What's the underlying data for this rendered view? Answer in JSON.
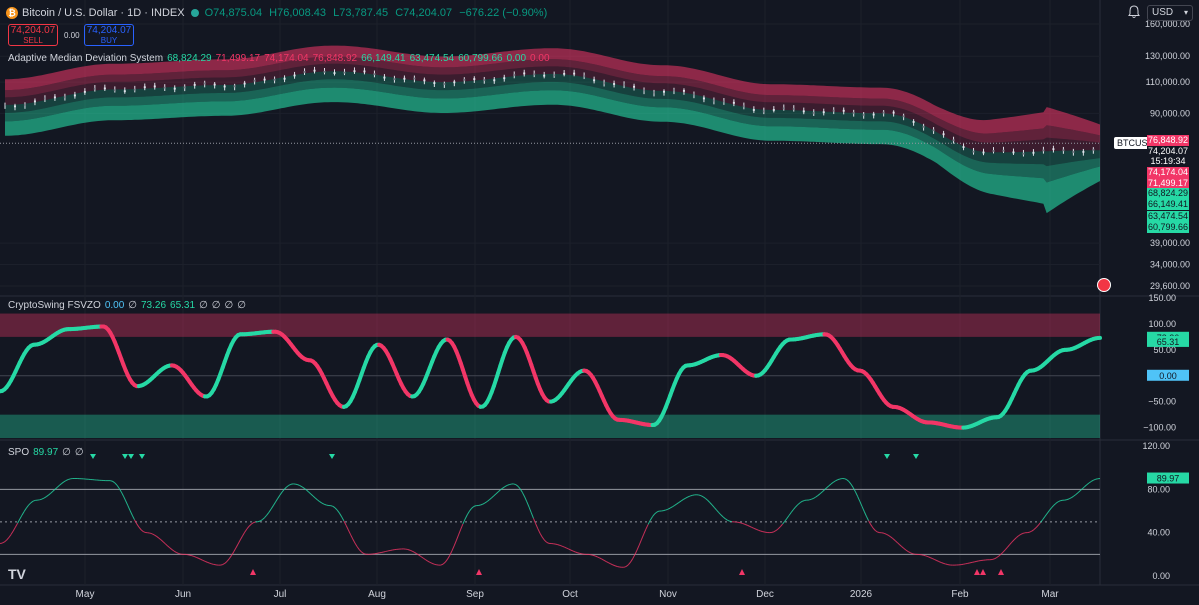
{
  "header": {
    "symbol_icon": "bitcoin-icon",
    "title": "Bitcoin / U.S. Dollar · 1D · INDEX",
    "ohlc": [
      "O74,875.04",
      "H76,008.43",
      "L73,787.45",
      "C74,204.07",
      "−676.22 (−0.90%)"
    ],
    "currency": "USD"
  },
  "trade": {
    "sell_price": "74,204.07",
    "sell_label": "SELL",
    "spread": "0.00",
    "buy_price": "74,204.07",
    "buy_label": "BUY"
  },
  "indicators": {
    "amds": {
      "name": "Adaptive Median Deviation System",
      "values": [
        {
          "v": "68,824.29",
          "c": "#26d9a5"
        },
        {
          "v": "71,499.17",
          "c": "#f23667"
        },
        {
          "v": "74,174.04",
          "c": "#f23667"
        },
        {
          "v": "76,848.92",
          "c": "#f23667"
        },
        {
          "v": "66,149.41",
          "c": "#26d9a5"
        },
        {
          "v": "63,474.54",
          "c": "#26d9a5"
        },
        {
          "v": "60,799.66",
          "c": "#26d9a5"
        },
        {
          "v": "0.00",
          "c": "#26d9a5"
        },
        {
          "v": "0.00",
          "c": "#f23667"
        }
      ]
    },
    "fsvzo": {
      "name": "CryptoSwing FSVZO",
      "values": [
        {
          "v": "0.00",
          "c": "#4fc3f7"
        },
        {
          "v": "∅",
          "c": "#d1d4dc"
        },
        {
          "v": "73.26",
          "c": "#26d9a5"
        },
        {
          "v": "65.31",
          "c": "#26d9a5"
        },
        {
          "v": "∅",
          "c": "#d1d4dc"
        },
        {
          "v": "∅",
          "c": "#d1d4dc"
        },
        {
          "v": "∅",
          "c": "#d1d4dc"
        },
        {
          "v": "∅",
          "c": "#d1d4dc"
        }
      ]
    },
    "spo": {
      "name": "SPO",
      "values": [
        {
          "v": "89.97",
          "c": "#26d9a5"
        },
        {
          "v": "∅",
          "c": "#d1d4dc"
        },
        {
          "v": "∅",
          "c": "#d1d4dc"
        }
      ]
    }
  },
  "price_axis": {
    "main_ticks": [
      "160,000.00",
      "130,000.00",
      "110,000.00",
      "90,000.00",
      "39,000.00",
      "34,000.00",
      "29,600.00"
    ],
    "main_tags": [
      {
        "v": "76,848.92",
        "c": "#f23667"
      },
      {
        "v": "74,204.07",
        "c": "#ffffff"
      },
      {
        "v": "15:19:34",
        "c": "#ffffff"
      },
      {
        "v": "74,174.04",
        "c": "#f23667"
      },
      {
        "v": "71,499.17",
        "c": "#f23667"
      },
      {
        "v": "68,824.29",
        "c": "#26d9a5"
      },
      {
        "v": "66,149.41",
        "c": "#26d9a5"
      },
      {
        "v": "63,474.54",
        "c": "#26d9a5"
      },
      {
        "v": "60,799.66",
        "c": "#26d9a5"
      }
    ],
    "symbol_label": "BTCUSD",
    "fsvzo_ticks": [
      "150.00",
      "100.00",
      "50.00",
      "−50.00",
      "−100.00"
    ],
    "fsvzo_tags": [
      "73.26",
      "65.31",
      "0.00"
    ],
    "spo_ticks": [
      "120.00",
      "80.00",
      "40.00",
      "0.00"
    ],
    "spo_tag": "89.97"
  },
  "time_axis": [
    "May",
    "Jun",
    "Jul",
    "Aug",
    "Sep",
    "Oct",
    "Nov",
    "Dec",
    "2026",
    "Feb",
    "Mar"
  ],
  "colors": {
    "bg": "#131722",
    "bull": "#26d9a5",
    "bear": "#f23667",
    "grid": "#2a2e39",
    "text": "#d1d4dc"
  },
  "chart_data": [
    {
      "type": "line",
      "title": "Adaptive Median Deviation System",
      "x": [
        "May",
        "Jun",
        "Jul",
        "Aug",
        "Sep",
        "Oct",
        "Nov",
        "Dec",
        "2026",
        "Feb",
        "Mar"
      ],
      "series": [
        {
          "values": [
            95000,
            105000,
            108000,
            118000,
            110000,
            116000,
            104000,
            92000,
            90000,
            70000,
            71000
          ]
        }
      ],
      "ylim": [
        29600,
        160000
      ]
    },
    {
      "type": "line",
      "title": "CryptoSwing FSVZO",
      "series": [
        {
          "values": [
            -30,
            60,
            90,
            95,
            -20,
            20,
            -40,
            80,
            85,
            30,
            -60,
            60,
            -40,
            70,
            -60,
            75,
            -50,
            10,
            -85,
            -95,
            20,
            40,
            0,
            70,
            80,
            10,
            -60,
            -90,
            -100,
            -80,
            10,
            50,
            73
          ]
        }
      ],
      "ylim": [
        -120,
        150
      ]
    },
    {
      "type": "line",
      "title": "SPO",
      "series": [
        {
          "values": [
            30,
            70,
            90,
            88,
            40,
            20,
            10,
            50,
            85,
            65,
            20,
            25,
            10,
            65,
            85,
            30,
            20,
            8,
            60,
            75,
            50,
            40,
            70,
            90,
            40,
            20,
            10,
            15,
            40,
            70,
            89.97
          ]
        }
      ],
      "ylim": [
        0,
        120
      ]
    }
  ]
}
